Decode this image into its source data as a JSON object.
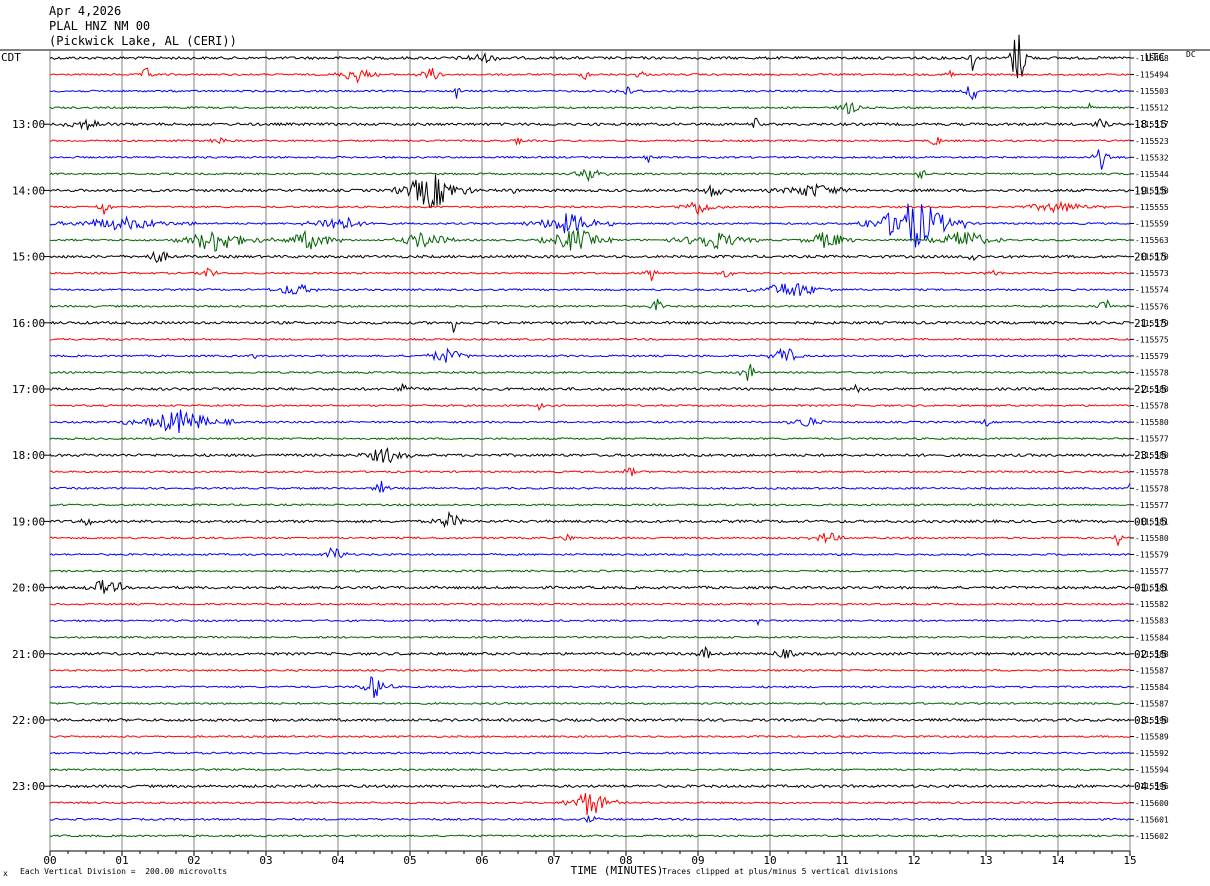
{
  "header": {
    "date": "Apr 4,2026",
    "station": "PLAL HNZ NM 00",
    "location": "(Pickwick Lake, AL (CERI))"
  },
  "footer": {
    "left_mark": "x",
    "scale_note": "Each Vertical Division =  200.00 microvolts",
    "xlabel": "TIME (MINUTES)",
    "clip_note": "Traces clipped at plus/minus 5 vertical divisions"
  },
  "chart_data": {
    "type": "line",
    "title": "",
    "xlabel": "TIME (MINUTES)",
    "ylabel_left": "CDT",
    "ylabel_right": "UTC",
    "dc_label": "DC",
    "xlim": [
      0,
      15
    ],
    "x_ticks": [
      "00",
      "01",
      "02",
      "03",
      "04",
      "05",
      "06",
      "07",
      "08",
      "09",
      "10",
      "11",
      "12",
      "13",
      "14",
      "15"
    ],
    "grid": true,
    "rows_per_hour": 4,
    "minutes_per_row": 15,
    "trace_colors": [
      "#000000",
      "#ff0000",
      "#0000ff",
      "#006400"
    ],
    "left_hour_labels": [
      "13:00",
      "14:00",
      "15:00",
      "16:00",
      "17:00",
      "18:00",
      "19:00",
      "20:00",
      "21:00",
      "22:00",
      "23:00"
    ],
    "right_hour_labels": [
      "18:15",
      "19:15",
      "20:15",
      "21:15",
      "22:15",
      "23:15",
      "00:15",
      "01:15",
      "02:15",
      "03:15",
      "04:15"
    ],
    "dc_offsets": [
      "-115488",
      "-115494",
      "-115503",
      "-115512",
      "-115517",
      "-115523",
      "-115532",
      "-115544",
      "-115550",
      "-115555",
      "-115559",
      "-115563",
      "-115570",
      "-115573",
      "-115574",
      "-115576",
      "-115579",
      "-115575",
      "-115579",
      "-115578",
      "-115580",
      "-115578",
      "-115580",
      "-115577",
      "-115580",
      "-115578",
      "-115578",
      "-115577",
      "-115581",
      "-115580",
      "-115579",
      "-115577",
      "-115581",
      "-115582",
      "-115583",
      "-115584",
      "-115588",
      "-115587",
      "-115584",
      "-115587",
      "-115590",
      "-115589",
      "-115592",
      "-115594",
      "-115596",
      "-115600",
      "-115601",
      "-115602"
    ],
    "events": [
      {
        "row": 0,
        "minute": 13.45,
        "amp": 30,
        "dur": 0.15
      },
      {
        "row": 0,
        "minute": 12.8,
        "amp": 20,
        "dur": 0.05
      },
      {
        "row": 0,
        "minute": 6.0,
        "amp": 4,
        "dur": 0.3
      },
      {
        "row": 1,
        "minute": 1.35,
        "amp": 7,
        "dur": 0.1
      },
      {
        "row": 1,
        "minute": 4.25,
        "amp": 8,
        "dur": 0.25
      },
      {
        "row": 1,
        "minute": 5.3,
        "amp": 6,
        "dur": 0.2
      },
      {
        "row": 1,
        "minute": 12.5,
        "amp": 8,
        "dur": 0.05
      },
      {
        "row": 1,
        "minute": 7.45,
        "amp": 6,
        "dur": 0.08
      },
      {
        "row": 1,
        "minute": 8.2,
        "amp": 5,
        "dur": 0.08
      },
      {
        "row": 2,
        "minute": 5.65,
        "amp": 8,
        "dur": 0.05
      },
      {
        "row": 2,
        "minute": 12.8,
        "amp": 12,
        "dur": 0.1
      },
      {
        "row": 2,
        "minute": 8.0,
        "amp": 4,
        "dur": 0.2
      },
      {
        "row": 3,
        "minute": 11.1,
        "amp": 7,
        "dur": 0.15
      },
      {
        "row": 3,
        "minute": 14.45,
        "amp": 7,
        "dur": 0.05
      },
      {
        "row": 4,
        "minute": 0.5,
        "amp": 5,
        "dur": 0.3
      },
      {
        "row": 4,
        "minute": 9.8,
        "amp": 7,
        "dur": 0.05
      },
      {
        "row": 4,
        "minute": 14.6,
        "amp": 6,
        "dur": 0.1
      },
      {
        "row": 5,
        "minute": 2.35,
        "amp": 6,
        "dur": 0.1
      },
      {
        "row": 5,
        "minute": 6.5,
        "amp": 5,
        "dur": 0.05
      },
      {
        "row": 5,
        "minute": 12.3,
        "amp": 6,
        "dur": 0.1
      },
      {
        "row": 6,
        "minute": 8.3,
        "amp": 7,
        "dur": 0.05
      },
      {
        "row": 6,
        "minute": 14.6,
        "amp": 12,
        "dur": 0.1
      },
      {
        "row": 7,
        "minute": 7.5,
        "amp": 7,
        "dur": 0.2
      },
      {
        "row": 7,
        "minute": 12.1,
        "amp": 5,
        "dur": 0.1
      },
      {
        "row": 8,
        "minute": 5.3,
        "amp": 18,
        "dur": 0.45
      },
      {
        "row": 8,
        "minute": 10.6,
        "amp": 6,
        "dur": 0.5
      },
      {
        "row": 8,
        "minute": 9.2,
        "amp": 6,
        "dur": 0.2
      },
      {
        "row": 8,
        "minute": 6.45,
        "amp": 6,
        "dur": 0.05
      },
      {
        "row": 9,
        "minute": 0.75,
        "amp": 8,
        "dur": 0.1
      },
      {
        "row": 9,
        "minute": 9.0,
        "amp": 7,
        "dur": 0.3
      },
      {
        "row": 9,
        "minute": 14.0,
        "amp": 5,
        "dur": 0.5
      },
      {
        "row": 10,
        "minute": 1.0,
        "amp": 6,
        "dur": 0.8
      },
      {
        "row": 10,
        "minute": 4.0,
        "amp": 8,
        "dur": 0.4
      },
      {
        "row": 10,
        "minute": 7.2,
        "amp": 10,
        "dur": 0.5
      },
      {
        "row": 10,
        "minute": 12.0,
        "amp": 25,
        "dur": 0.6
      },
      {
        "row": 11,
        "minute": 2.3,
        "amp": 12,
        "dur": 0.5
      },
      {
        "row": 11,
        "minute": 3.6,
        "amp": 9,
        "dur": 0.4
      },
      {
        "row": 11,
        "minute": 5.2,
        "amp": 8,
        "dur": 0.4
      },
      {
        "row": 11,
        "minute": 7.3,
        "amp": 12,
        "dur": 0.4
      },
      {
        "row": 11,
        "minute": 9.2,
        "amp": 9,
        "dur": 0.5
      },
      {
        "row": 11,
        "minute": 10.8,
        "amp": 9,
        "dur": 0.3
      },
      {
        "row": 11,
        "minute": 12.7,
        "amp": 10,
        "dur": 0.4
      },
      {
        "row": 12,
        "minute": 1.5,
        "amp": 6,
        "dur": 0.2
      },
      {
        "row": 12,
        "minute": 12.8,
        "amp": 6,
        "dur": 0.1
      },
      {
        "row": 13,
        "minute": 2.2,
        "amp": 8,
        "dur": 0.1
      },
      {
        "row": 13,
        "minute": 8.35,
        "amp": 8,
        "dur": 0.1
      },
      {
        "row": 13,
        "minute": 9.4,
        "amp": 5,
        "dur": 0.1
      },
      {
        "row": 13,
        "minute": 13.1,
        "amp": 4,
        "dur": 0.1
      },
      {
        "row": 14,
        "minute": 3.4,
        "amp": 6,
        "dur": 0.3
      },
      {
        "row": 14,
        "minute": 10.3,
        "amp": 8,
        "dur": 0.5
      },
      {
        "row": 15,
        "minute": 8.45,
        "amp": 8,
        "dur": 0.1
      },
      {
        "row": 15,
        "minute": 14.65,
        "amp": 8,
        "dur": 0.1
      },
      {
        "row": 16,
        "minute": 5.6,
        "amp": 10,
        "dur": 0.05
      },
      {
        "row": 18,
        "minute": 5.5,
        "amp": 7,
        "dur": 0.3
      },
      {
        "row": 18,
        "minute": 10.2,
        "amp": 10,
        "dur": 0.2
      },
      {
        "row": 18,
        "minute": 2.85,
        "amp": 5,
        "dur": 0.05
      },
      {
        "row": 19,
        "minute": 9.7,
        "amp": 12,
        "dur": 0.1
      },
      {
        "row": 20,
        "minute": 4.9,
        "amp": 5,
        "dur": 0.1
      },
      {
        "row": 20,
        "minute": 11.2,
        "amp": 6,
        "dur": 0.05
      },
      {
        "row": 21,
        "minute": 6.8,
        "amp": 5,
        "dur": 0.05
      },
      {
        "row": 22,
        "minute": 1.8,
        "amp": 12,
        "dur": 0.6
      },
      {
        "row": 22,
        "minute": 10.5,
        "amp": 6,
        "dur": 0.2
      },
      {
        "row": 22,
        "minute": 13.0,
        "amp": 6,
        "dur": 0.05
      },
      {
        "row": 24,
        "minute": 4.65,
        "amp": 8,
        "dur": 0.3
      },
      {
        "row": 25,
        "minute": 8.05,
        "amp": 5,
        "dur": 0.1
      },
      {
        "row": 26,
        "minute": 4.6,
        "amp": 7,
        "dur": 0.1
      },
      {
        "row": 26,
        "minute": 15.0,
        "amp": 5,
        "dur": 0.05
      },
      {
        "row": 27,
        "minute": 9.1,
        "amp": 7,
        "dur": 0.05
      },
      {
        "row": 28,
        "minute": 0.5,
        "amp": 5,
        "dur": 0.1
      },
      {
        "row": 28,
        "minute": 5.55,
        "amp": 8,
        "dur": 0.2
      },
      {
        "row": 29,
        "minute": 7.2,
        "amp": 4,
        "dur": 0.1
      },
      {
        "row": 29,
        "minute": 10.8,
        "amp": 6,
        "dur": 0.2
      },
      {
        "row": 29,
        "minute": 14.85,
        "amp": 12,
        "dur": 0.05
      },
      {
        "row": 30,
        "minute": 3.95,
        "amp": 9,
        "dur": 0.15
      },
      {
        "row": 32,
        "minute": 0.75,
        "amp": 8,
        "dur": 0.2
      },
      {
        "row": 32,
        "minute": 0.95,
        "amp": 6,
        "dur": 0.05
      },
      {
        "row": 34,
        "minute": 9.85,
        "amp": 6,
        "dur": 0.05
      },
      {
        "row": 36,
        "minute": 9.1,
        "amp": 6,
        "dur": 0.1
      },
      {
        "row": 36,
        "minute": 10.2,
        "amp": 4,
        "dur": 0.2
      },
      {
        "row": 38,
        "minute": 4.5,
        "amp": 12,
        "dur": 0.2
      },
      {
        "row": 45,
        "minute": 7.5,
        "amp": 14,
        "dur": 0.3
      },
      {
        "row": 46,
        "minute": 7.5,
        "amp": 5,
        "dur": 0.1
      }
    ]
  }
}
